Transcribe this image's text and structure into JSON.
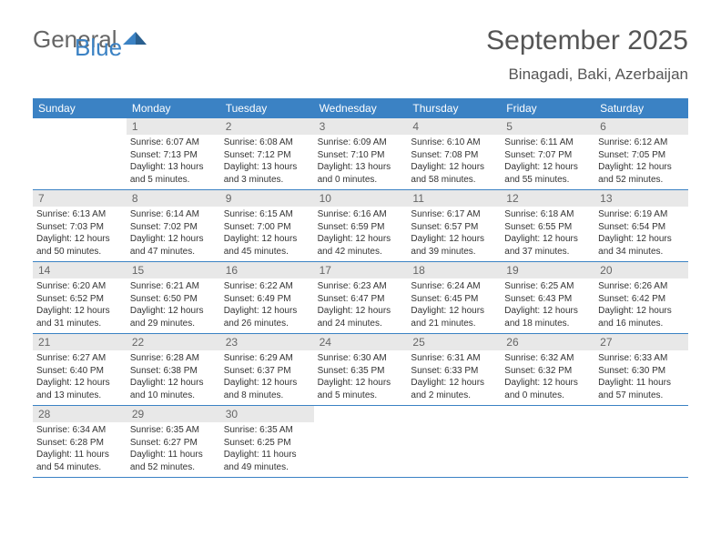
{
  "logo": {
    "text1": "General",
    "text2": "Blue"
  },
  "header": {
    "month": "September 2025",
    "location": "Binagadi, Baki, Azerbaijan"
  },
  "colors": {
    "header_bg": "#3b82c4",
    "header_text": "#ffffff",
    "daynum_bg": "#e8e8e8",
    "daynum_text": "#666666",
    "body_text": "#333333",
    "title_text": "#555555",
    "row_border": "#3b82c4"
  },
  "weekdays": [
    "Sunday",
    "Monday",
    "Tuesday",
    "Wednesday",
    "Thursday",
    "Friday",
    "Saturday"
  ],
  "grid": [
    [
      null,
      {
        "n": "1",
        "sr": "6:07 AM",
        "ss": "7:13 PM",
        "dl": "13 hours and 5 minutes."
      },
      {
        "n": "2",
        "sr": "6:08 AM",
        "ss": "7:12 PM",
        "dl": "13 hours and 3 minutes."
      },
      {
        "n": "3",
        "sr": "6:09 AM",
        "ss": "7:10 PM",
        "dl": "13 hours and 0 minutes."
      },
      {
        "n": "4",
        "sr": "6:10 AM",
        "ss": "7:08 PM",
        "dl": "12 hours and 58 minutes."
      },
      {
        "n": "5",
        "sr": "6:11 AM",
        "ss": "7:07 PM",
        "dl": "12 hours and 55 minutes."
      },
      {
        "n": "6",
        "sr": "6:12 AM",
        "ss": "7:05 PM",
        "dl": "12 hours and 52 minutes."
      }
    ],
    [
      {
        "n": "7",
        "sr": "6:13 AM",
        "ss": "7:03 PM",
        "dl": "12 hours and 50 minutes."
      },
      {
        "n": "8",
        "sr": "6:14 AM",
        "ss": "7:02 PM",
        "dl": "12 hours and 47 minutes."
      },
      {
        "n": "9",
        "sr": "6:15 AM",
        "ss": "7:00 PM",
        "dl": "12 hours and 45 minutes."
      },
      {
        "n": "10",
        "sr": "6:16 AM",
        "ss": "6:59 PM",
        "dl": "12 hours and 42 minutes."
      },
      {
        "n": "11",
        "sr": "6:17 AM",
        "ss": "6:57 PM",
        "dl": "12 hours and 39 minutes."
      },
      {
        "n": "12",
        "sr": "6:18 AM",
        "ss": "6:55 PM",
        "dl": "12 hours and 37 minutes."
      },
      {
        "n": "13",
        "sr": "6:19 AM",
        "ss": "6:54 PM",
        "dl": "12 hours and 34 minutes."
      }
    ],
    [
      {
        "n": "14",
        "sr": "6:20 AM",
        "ss": "6:52 PM",
        "dl": "12 hours and 31 minutes."
      },
      {
        "n": "15",
        "sr": "6:21 AM",
        "ss": "6:50 PM",
        "dl": "12 hours and 29 minutes."
      },
      {
        "n": "16",
        "sr": "6:22 AM",
        "ss": "6:49 PM",
        "dl": "12 hours and 26 minutes."
      },
      {
        "n": "17",
        "sr": "6:23 AM",
        "ss": "6:47 PM",
        "dl": "12 hours and 24 minutes."
      },
      {
        "n": "18",
        "sr": "6:24 AM",
        "ss": "6:45 PM",
        "dl": "12 hours and 21 minutes."
      },
      {
        "n": "19",
        "sr": "6:25 AM",
        "ss": "6:43 PM",
        "dl": "12 hours and 18 minutes."
      },
      {
        "n": "20",
        "sr": "6:26 AM",
        "ss": "6:42 PM",
        "dl": "12 hours and 16 minutes."
      }
    ],
    [
      {
        "n": "21",
        "sr": "6:27 AM",
        "ss": "6:40 PM",
        "dl": "12 hours and 13 minutes."
      },
      {
        "n": "22",
        "sr": "6:28 AM",
        "ss": "6:38 PM",
        "dl": "12 hours and 10 minutes."
      },
      {
        "n": "23",
        "sr": "6:29 AM",
        "ss": "6:37 PM",
        "dl": "12 hours and 8 minutes."
      },
      {
        "n": "24",
        "sr": "6:30 AM",
        "ss": "6:35 PM",
        "dl": "12 hours and 5 minutes."
      },
      {
        "n": "25",
        "sr": "6:31 AM",
        "ss": "6:33 PM",
        "dl": "12 hours and 2 minutes."
      },
      {
        "n": "26",
        "sr": "6:32 AM",
        "ss": "6:32 PM",
        "dl": "12 hours and 0 minutes."
      },
      {
        "n": "27",
        "sr": "6:33 AM",
        "ss": "6:30 PM",
        "dl": "11 hours and 57 minutes."
      }
    ],
    [
      {
        "n": "28",
        "sr": "6:34 AM",
        "ss": "6:28 PM",
        "dl": "11 hours and 54 minutes."
      },
      {
        "n": "29",
        "sr": "6:35 AM",
        "ss": "6:27 PM",
        "dl": "11 hours and 52 minutes."
      },
      {
        "n": "30",
        "sr": "6:35 AM",
        "ss": "6:25 PM",
        "dl": "11 hours and 49 minutes."
      },
      null,
      null,
      null,
      null
    ]
  ],
  "labels": {
    "sunrise": "Sunrise:",
    "sunset": "Sunset:",
    "daylight": "Daylight:"
  }
}
